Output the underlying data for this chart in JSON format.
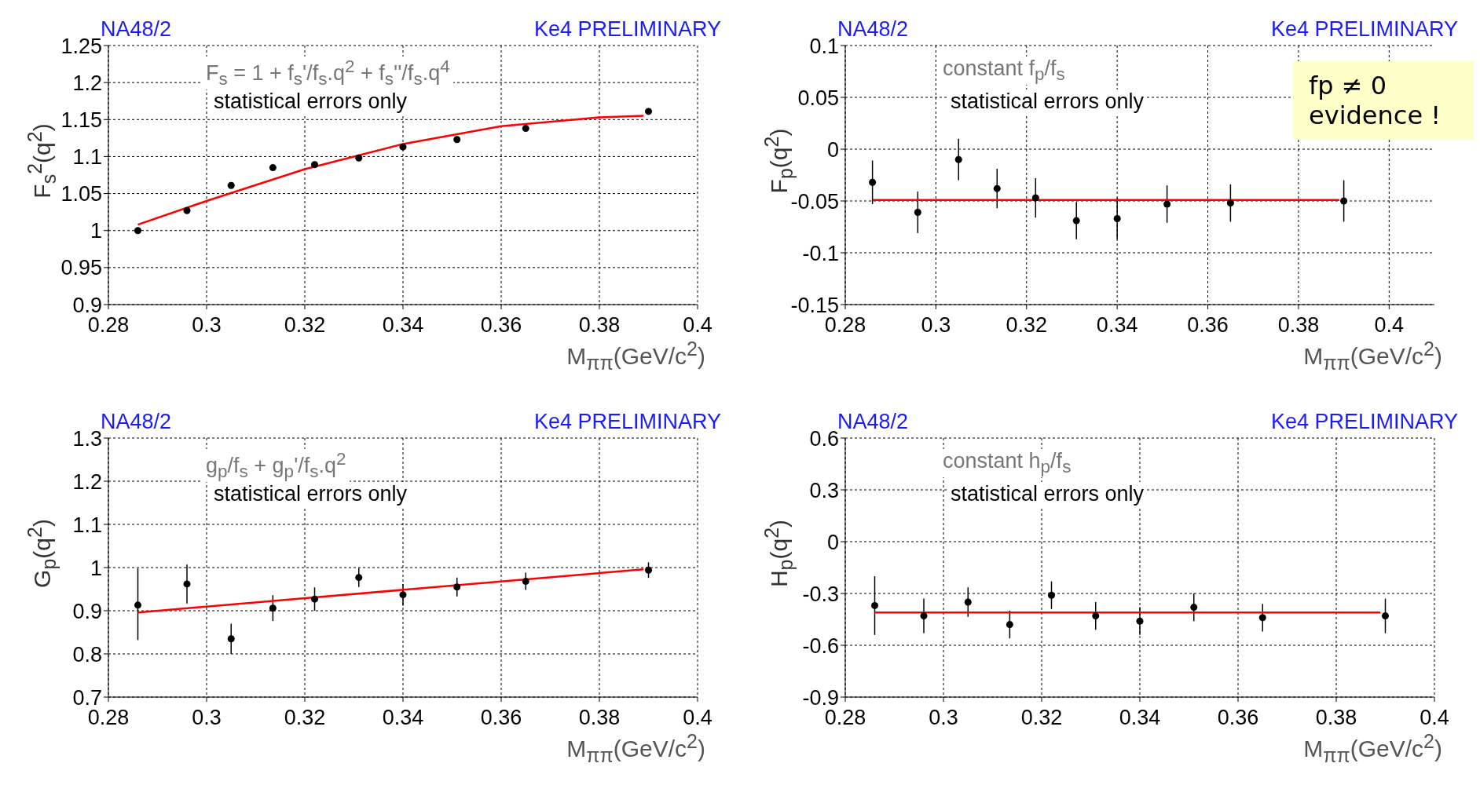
{
  "chart_data": [
    {
      "type": "scatter",
      "xlabel": "M$_{ππ}$(GeV/c$^{2}$)",
      "ylabel": "F$_{s}$$^{2}$(q$^{2}$)",
      "annotations": [
        "NA48/2",
        "Ke4 PRELIMINARY",
        "F$_{s}$ = 1 + f$_{s}$'/f$_{s}$.q$^{2}$ + f$_{s}$''/f$_{s}$.q$^{4}$",
        "statistical errors only"
      ],
      "x": [
        0.286,
        0.296,
        0.305,
        0.3135,
        0.322,
        0.331,
        0.34,
        0.351,
        0.365,
        0.39
      ],
      "series": [
        {
          "color": "#000000",
          "marker": "circle",
          "values": [
            1.0,
            1.027,
            1.061,
            1.085,
            1.089,
            1.098,
            1.113,
            1.123,
            1.138,
            1.161
          ],
          "errors": [
            0.004,
            0.004,
            0.004,
            0.004,
            0.004,
            0.004,
            0.004,
            0.004,
            0.004,
            0.004
          ]
        },
        {
          "type": "line",
          "color": "#ff0000",
          "x": [
            0.286,
            0.3,
            0.32,
            0.34,
            0.36,
            0.38,
            0.389
          ],
          "values": [
            1.008,
            1.04,
            1.083,
            1.117,
            1.141,
            1.153,
            1.155
          ]
        }
      ],
      "xlim": [
        0.28,
        0.4
      ],
      "xticks": [
        0.28,
        0.3,
        0.32,
        0.34,
        0.36,
        0.38,
        0.4
      ],
      "ylim": [
        0.9,
        1.25
      ],
      "yticks": [
        0.9,
        0.95,
        1,
        1.05,
        1.1,
        1.15,
        1.2,
        1.25
      ],
      "grid": true,
      "legend": false
    },
    {
      "type": "scatter",
      "xlabel": "M$_{ππ}$(GeV/c$^{2}$)",
      "ylabel": "F$_{p}$(q$^{2}$)",
      "annotations": [
        "NA48/2",
        "Ke4 PRELIMINARY",
        "constant f$_{p}$/f$_{s}$",
        "statistical errors only",
        "fp ≠ 0 evidence !"
      ],
      "x": [
        0.286,
        0.296,
        0.305,
        0.3135,
        0.322,
        0.331,
        0.34,
        0.351,
        0.365,
        0.39
      ],
      "series": [
        {
          "color": "#000000",
          "marker": "circle",
          "values": [
            -0.032,
            -0.061,
            -0.01,
            -0.038,
            -0.047,
            -0.069,
            -0.067,
            -0.053,
            -0.052,
            -0.05
          ],
          "errors": [
            0.021,
            0.02,
            0.02,
            0.019,
            0.019,
            0.018,
            0.02,
            0.018,
            0.018,
            0.02
          ]
        },
        {
          "type": "line",
          "color": "#ff0000",
          "x": [
            0.286,
            0.389
          ],
          "values": [
            -0.049,
            -0.049
          ]
        }
      ],
      "xlim": [
        0.28,
        0.41
      ],
      "xticks": [
        0.28,
        0.3,
        0.32,
        0.34,
        0.36,
        0.38,
        0.4
      ],
      "ylim": [
        -0.15,
        0.1
      ],
      "yticks": [
        -0.15,
        -0.1,
        -0.05,
        0,
        0.05,
        0.1
      ],
      "grid": true,
      "legend": false
    },
    {
      "type": "scatter",
      "xlabel": "M$_{ππ}$(GeV/c$^{2}$)",
      "ylabel": "G$_{p}$(q$^{2}$)",
      "annotations": [
        "NA48/2",
        "Ke4 PRELIMINARY",
        "g$_{p}$/f$_{s}$ + g$_{p}$'/f$_{s}$.q$^{2}$",
        "statistical errors only"
      ],
      "x": [
        0.286,
        0.296,
        0.305,
        0.3135,
        0.322,
        0.331,
        0.34,
        0.351,
        0.365,
        0.39
      ],
      "series": [
        {
          "color": "#000000",
          "marker": "circle",
          "values": [
            0.913,
            0.962,
            0.835,
            0.906,
            0.927,
            0.977,
            0.937,
            0.955,
            0.968,
            0.994
          ],
          "errors": [
            [
              0.832,
              0.998
            ],
            0.045,
            0.035,
            0.03,
            0.027,
            0.022,
            0.025,
            0.022,
            0.02,
            0.018
          ]
        },
        {
          "type": "line",
          "color": "#ff0000",
          "x": [
            0.286,
            0.389
          ],
          "values": [
            0.896,
            0.996
          ]
        }
      ],
      "xlim": [
        0.28,
        0.4
      ],
      "xticks": [
        0.28,
        0.3,
        0.32,
        0.34,
        0.36,
        0.38,
        0.4
      ],
      "ylim": [
        0.7,
        1.3
      ],
      "yticks": [
        0.7,
        0.8,
        0.9,
        1,
        1.1,
        1.2,
        1.3
      ],
      "grid": true,
      "legend": false
    },
    {
      "type": "scatter",
      "xlabel": "M$_{ππ}$(GeV/c$^{2}$)",
      "ylabel": "H$_{p}$(q$^{2}$)",
      "annotations": [
        "NA48/2",
        "Ke4 PRELIMINARY",
        "constant h$_{p}$/f$_{s}$",
        "statistical errors only"
      ],
      "x": [
        0.286,
        0.296,
        0.305,
        0.3135,
        0.322,
        0.331,
        0.34,
        0.351,
        0.365,
        0.39
      ],
      "series": [
        {
          "color": "#000000",
          "marker": "circle",
          "values": [
            -0.37,
            -0.43,
            -0.35,
            -0.48,
            -0.31,
            -0.43,
            -0.46,
            -0.38,
            -0.44,
            -0.43
          ],
          "errors": [
            [
              -0.54,
              -0.2
            ],
            0.1,
            0.085,
            0.08,
            0.08,
            0.08,
            0.08,
            0.08,
            0.08,
            0.1
          ]
        },
        {
          "type": "line",
          "color": "#ff0000",
          "x": [
            0.286,
            0.389
          ],
          "values": [
            -0.41,
            -0.41
          ]
        }
      ],
      "xlim": [
        0.28,
        0.4
      ],
      "xticks": [
        0.28,
        0.3,
        0.32,
        0.34,
        0.36,
        0.38,
        0.4
      ],
      "ylim": [
        -0.9,
        0.6
      ],
      "yticks": [
        -0.9,
        -0.6,
        -0.3,
        0,
        0.3,
        0.6
      ],
      "grid": true,
      "legend": false
    }
  ]
}
